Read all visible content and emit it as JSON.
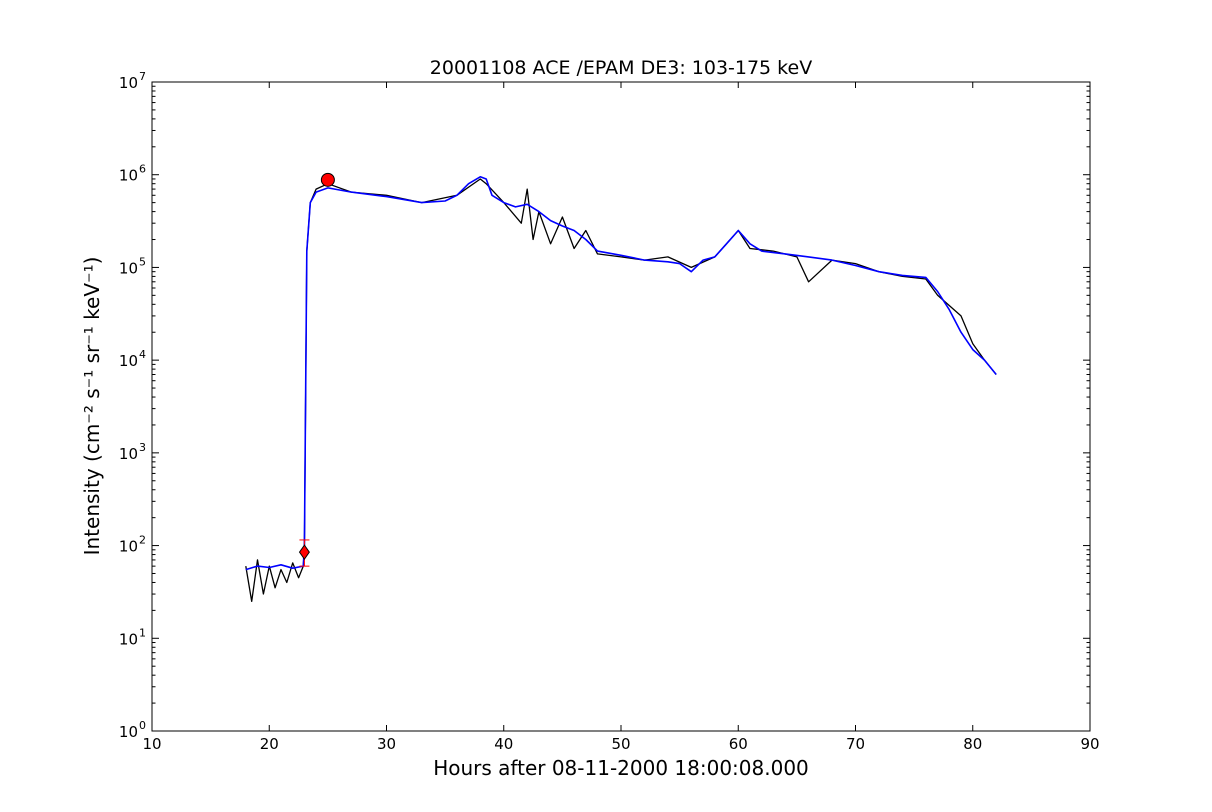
{
  "chart_data": {
    "type": "line",
    "title": "20001108 ACE /EPAM DE3: 103-175 keV",
    "xlabel": "Hours after 08-11-2000 18:00:08.000",
    "ylabel": "Intensity (cm⁻² s⁻¹ sr⁻¹ keV⁻¹)",
    "xlim": [
      10,
      90
    ],
    "ylim": [
      1,
      10000000
    ],
    "yscale": "log",
    "grid": false,
    "x_ticks": [
      "10",
      "20",
      "30",
      "40",
      "50",
      "60",
      "70",
      "80",
      "90"
    ],
    "y_ticks": [
      {
        "base": "10",
        "exp": "0"
      },
      {
        "base": "10",
        "exp": "1"
      },
      {
        "base": "10",
        "exp": "2"
      },
      {
        "base": "10",
        "exp": "3"
      },
      {
        "base": "10",
        "exp": "4"
      },
      {
        "base": "10",
        "exp": "5"
      },
      {
        "base": "10",
        "exp": "6"
      },
      {
        "base": "10",
        "exp": "7"
      }
    ],
    "series": [
      {
        "color": "#000000",
        "x": [
          18.0,
          18.5,
          19.0,
          19.5,
          20.0,
          20.5,
          21.0,
          21.5,
          22.0,
          22.5,
          22.9,
          23.0,
          23.2,
          23.5,
          24.0,
          25.0,
          27.0,
          30.0,
          33.0,
          36.0,
          38.0,
          38.5,
          40.0,
          41.5,
          42.0,
          42.5,
          43.0,
          44.0,
          45.0,
          46.0,
          47.0,
          48.0,
          50.0,
          52.0,
          54.0,
          56.0,
          58.0,
          60.0,
          61.0,
          63.0,
          65.0,
          66.0,
          68.0,
          70.0,
          72.0,
          74.0,
          76.0,
          77.0,
          79.0,
          80.0,
          81.0,
          82.0
        ],
        "y": [
          60,
          25,
          70,
          30,
          60,
          35,
          55,
          40,
          65,
          45,
          60,
          90,
          150000,
          500000,
          700000,
          800000,
          650000,
          600000,
          500000,
          600000,
          900000,
          800000,
          500000,
          300000,
          700000,
          200000,
          400000,
          180000,
          350000,
          160000,
          250000,
          140000,
          130000,
          120000,
          130000,
          100000,
          130000,
          250000,
          160000,
          150000,
          130000,
          70000,
          120000,
          110000,
          90000,
          80000,
          75000,
          50000,
          30000,
          15000,
          10000,
          7000
        ]
      },
      {
        "color": "#0000ff",
        "x": [
          18.0,
          19.0,
          20.0,
          21.0,
          22.0,
          22.9,
          23.0,
          23.2,
          23.5,
          24.0,
          25.0,
          27.0,
          30.0,
          33.0,
          35.0,
          36.0,
          37.0,
          38.0,
          38.5,
          39.0,
          40.0,
          41.0,
          42.0,
          43.0,
          44.0,
          45.0,
          46.0,
          47.0,
          48.0,
          50.0,
          52.0,
          54.0,
          55.0,
          56.0,
          57.0,
          58.0,
          59.0,
          60.0,
          61.0,
          62.0,
          64.0,
          66.0,
          68.0,
          70.0,
          72.0,
          74.0,
          76.0,
          77.0,
          78.0,
          79.0,
          80.0,
          81.0,
          82.0
        ],
        "y": [
          55,
          60,
          58,
          62,
          57,
          60,
          100,
          150000,
          500000,
          650000,
          720000,
          650000,
          580000,
          500000,
          520000,
          600000,
          800000,
          950000,
          900000,
          600000,
          500000,
          450000,
          480000,
          400000,
          320000,
          280000,
          250000,
          200000,
          150000,
          135000,
          120000,
          115000,
          110000,
          90000,
          120000,
          130000,
          180000,
          250000,
          180000,
          150000,
          140000,
          130000,
          120000,
          105000,
          90000,
          82000,
          78000,
          55000,
          35000,
          20000,
          13000,
          10000,
          7000
        ]
      }
    ],
    "markers": [
      {
        "shape": "circle",
        "color": "#ff0000",
        "x": 25.0,
        "y": 880000
      },
      {
        "shape": "diamond",
        "color": "#ff0000",
        "x": 23.0,
        "y": 85,
        "yerr_low": 60,
        "yerr_high": 115
      }
    ]
  }
}
